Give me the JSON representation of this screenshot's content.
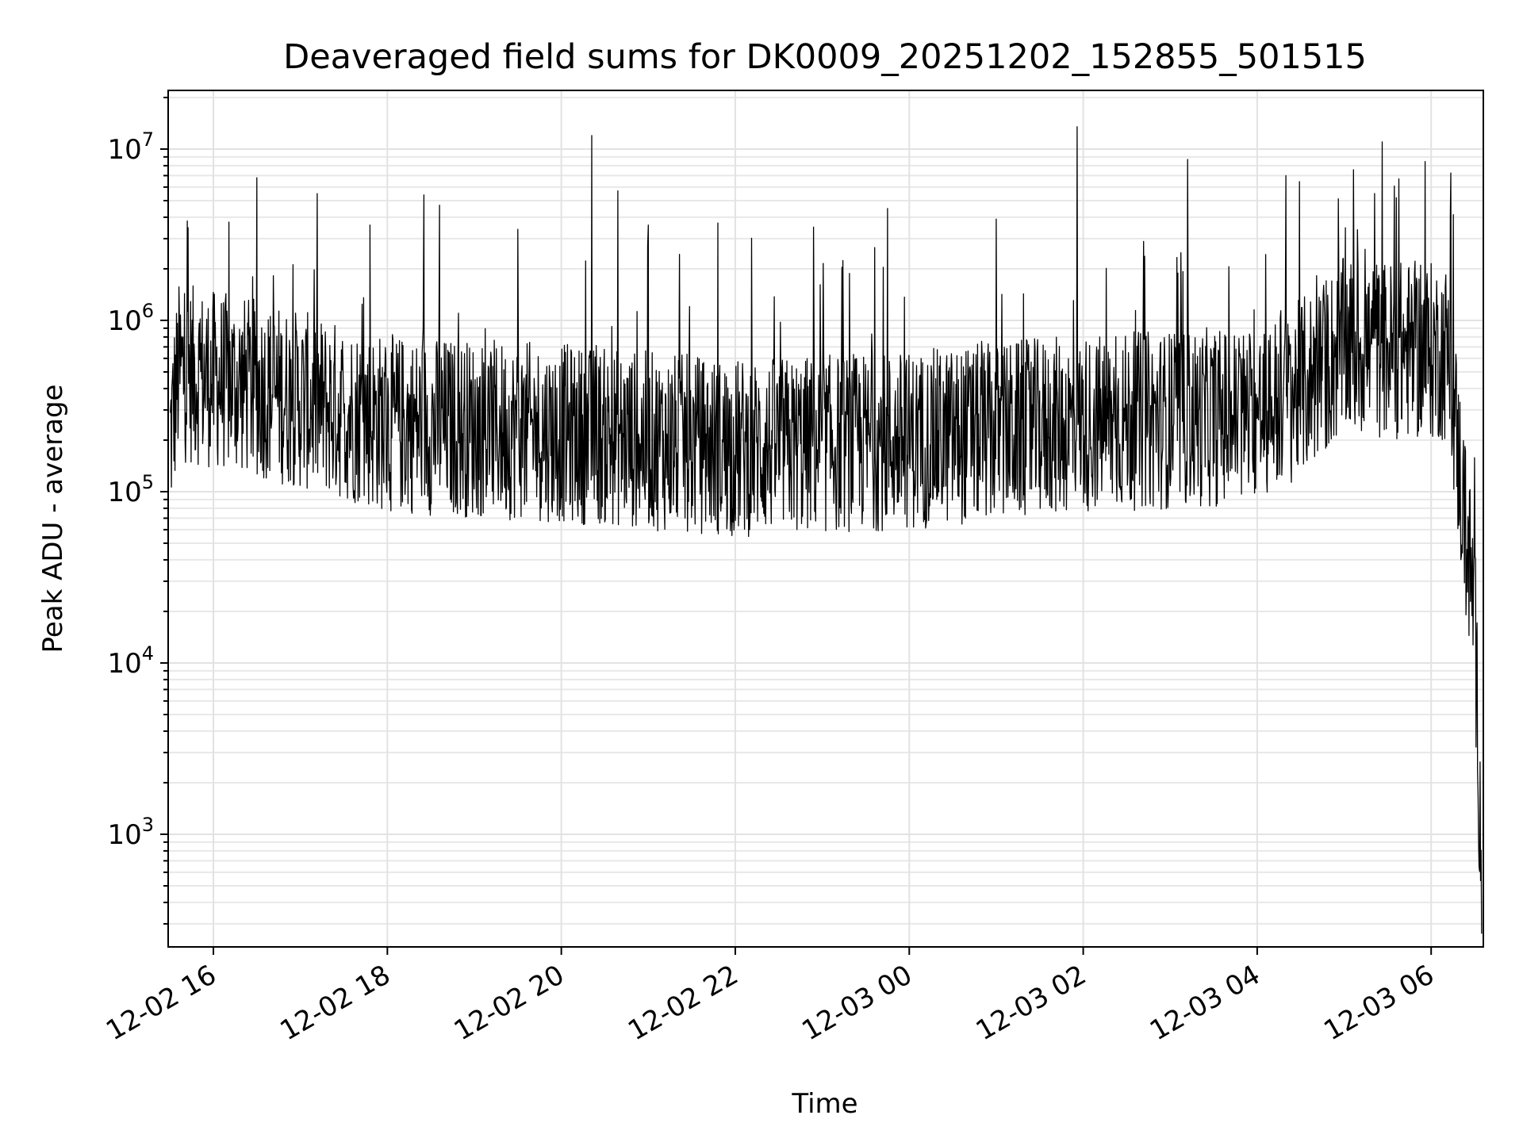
{
  "chart_data": {
    "type": "line",
    "title": "Deaveraged field sums for DK0009_20251202_152855_501515",
    "xlabel": "Time",
    "ylabel": "Peak ADU - average",
    "yscale": "log",
    "ylim": [
      220,
      22000000
    ],
    "xlim_hours": [
      15.48,
      30.6
    ],
    "x_ticks": [
      {
        "hour": 16,
        "label": "12-02 16"
      },
      {
        "hour": 18,
        "label": "12-02 18"
      },
      {
        "hour": 20,
        "label": "12-02 20"
      },
      {
        "hour": 22,
        "label": "12-02 22"
      },
      {
        "hour": 24,
        "label": "12-03 00"
      },
      {
        "hour": 26,
        "label": "12-03 02"
      },
      {
        "hour": 28,
        "label": "12-03 04"
      },
      {
        "hour": 30,
        "label": "12-03 06"
      }
    ],
    "y_ticks": [
      {
        "value": 1000,
        "base": "10",
        "exp": "3"
      },
      {
        "value": 10000,
        "base": "10",
        "exp": "4"
      },
      {
        "value": 100000,
        "base": "10",
        "exp": "5"
      },
      {
        "value": 1000000,
        "base": "10",
        "exp": "6"
      },
      {
        "value": 10000000,
        "base": "10",
        "exp": "7"
      }
    ],
    "grid": true,
    "series": [
      {
        "name": "field sums",
        "color": "#000000",
        "baseline_profile": [
          {
            "hour": 15.5,
            "center": 200000
          },
          {
            "hour": 15.6,
            "center": 500000
          },
          {
            "hour": 16.5,
            "center": 400000
          },
          {
            "hour": 18.0,
            "center": 250000
          },
          {
            "hour": 20.0,
            "center": 220000
          },
          {
            "hour": 22.0,
            "center": 180000
          },
          {
            "hour": 24.0,
            "center": 200000
          },
          {
            "hour": 26.0,
            "center": 250000
          },
          {
            "hour": 28.0,
            "center": 280000
          },
          {
            "hour": 28.5,
            "center": 400000
          },
          {
            "hour": 29.0,
            "center": 700000
          },
          {
            "hour": 30.2,
            "center": 650000
          },
          {
            "hour": 30.35,
            "center": 100000
          },
          {
            "hour": 30.5,
            "center": 20000
          },
          {
            "hour": 30.58,
            "center": 600
          }
        ],
        "spikes": [
          {
            "hour": 15.7,
            "value": 3800000
          },
          {
            "hour": 16.5,
            "value": 6800000
          },
          {
            "hour": 17.8,
            "value": 3600000
          },
          {
            "hour": 18.42,
            "value": 5400000
          },
          {
            "hour": 18.6,
            "value": 4700000
          },
          {
            "hour": 19.5,
            "value": 3400000
          },
          {
            "hour": 20.35,
            "value": 12000000
          },
          {
            "hour": 20.65,
            "value": 5700000
          },
          {
            "hour": 21.0,
            "value": 3600000
          },
          {
            "hour": 21.8,
            "value": 3700000
          },
          {
            "hour": 22.9,
            "value": 3500000
          },
          {
            "hour": 23.75,
            "value": 4500000
          },
          {
            "hour": 25.0,
            "value": 3900000
          },
          {
            "hour": 25.93,
            "value": 13500000
          },
          {
            "hour": 27.2,
            "value": 8700000
          },
          {
            "hour": 28.33,
            "value": 7000000
          },
          {
            "hour": 29.35,
            "value": 5500000
          },
          {
            "hour": 29.6,
            "value": 5200000
          }
        ]
      }
    ]
  }
}
